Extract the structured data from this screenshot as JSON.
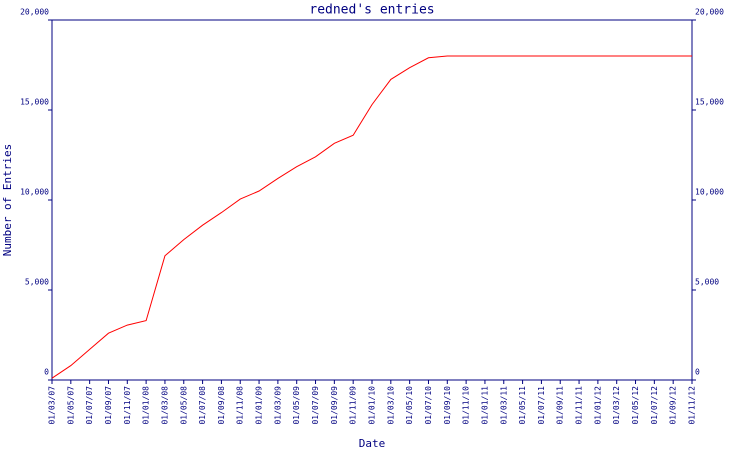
{
  "chart_data": {
    "type": "line",
    "title": "redned's entries",
    "x_label": "Date",
    "y_label": "Number of Entries",
    "categories": [
      "01/03/07",
      "01/05/07",
      "01/07/07",
      "01/09/07",
      "01/11/07",
      "01/01/08",
      "01/03/08",
      "01/05/08",
      "01/07/08",
      "01/09/08",
      "01/11/08",
      "01/01/09",
      "01/03/09",
      "01/05/09",
      "01/07/09",
      "01/09/09",
      "01/11/09",
      "01/01/10",
      "01/03/10",
      "01/05/10",
      "01/07/10",
      "01/09/10",
      "01/11/10",
      "01/01/11",
      "01/03/11",
      "01/05/11",
      "01/07/11",
      "01/09/11",
      "01/11/11",
      "01/01/12",
      "01/03/12",
      "01/05/12",
      "01/07/12",
      "01/09/12",
      "01/11/12"
    ],
    "series": [
      {
        "color": "#ff0000",
        "values": [
          100,
          800,
          1700,
          2600,
          3050,
          3300,
          6900,
          7800,
          8600,
          9300,
          10050,
          10500,
          11200,
          11850,
          12400,
          13150,
          13600,
          15300,
          16700,
          17350,
          17900,
          18000,
          18000,
          18000,
          18000,
          18000,
          18000,
          18000,
          18000,
          18000,
          18000,
          18000,
          18000,
          18000,
          18000
        ]
      }
    ],
    "ylim": [
      0,
      20000
    ],
    "yticks": [
      0,
      {
        "value": 5000,
        "label": "5,000"
      },
      {
        "value": 10000,
        "label": "10,000"
      },
      {
        "value": 15000,
        "label": "15,000"
      },
      {
        "value": 20000,
        "label": "20,000"
      }
    ],
    "y2lim": [
      0,
      20000
    ],
    "y2ticks": [
      0,
      {
        "value": 5000,
        "label": "5,000"
      },
      {
        "value": 10000,
        "label": "10,000"
      },
      {
        "value": 15000,
        "label": "15,000"
      },
      {
        "value": 20000,
        "label": "20,000"
      }
    ],
    "axis_color": "#000080"
  }
}
